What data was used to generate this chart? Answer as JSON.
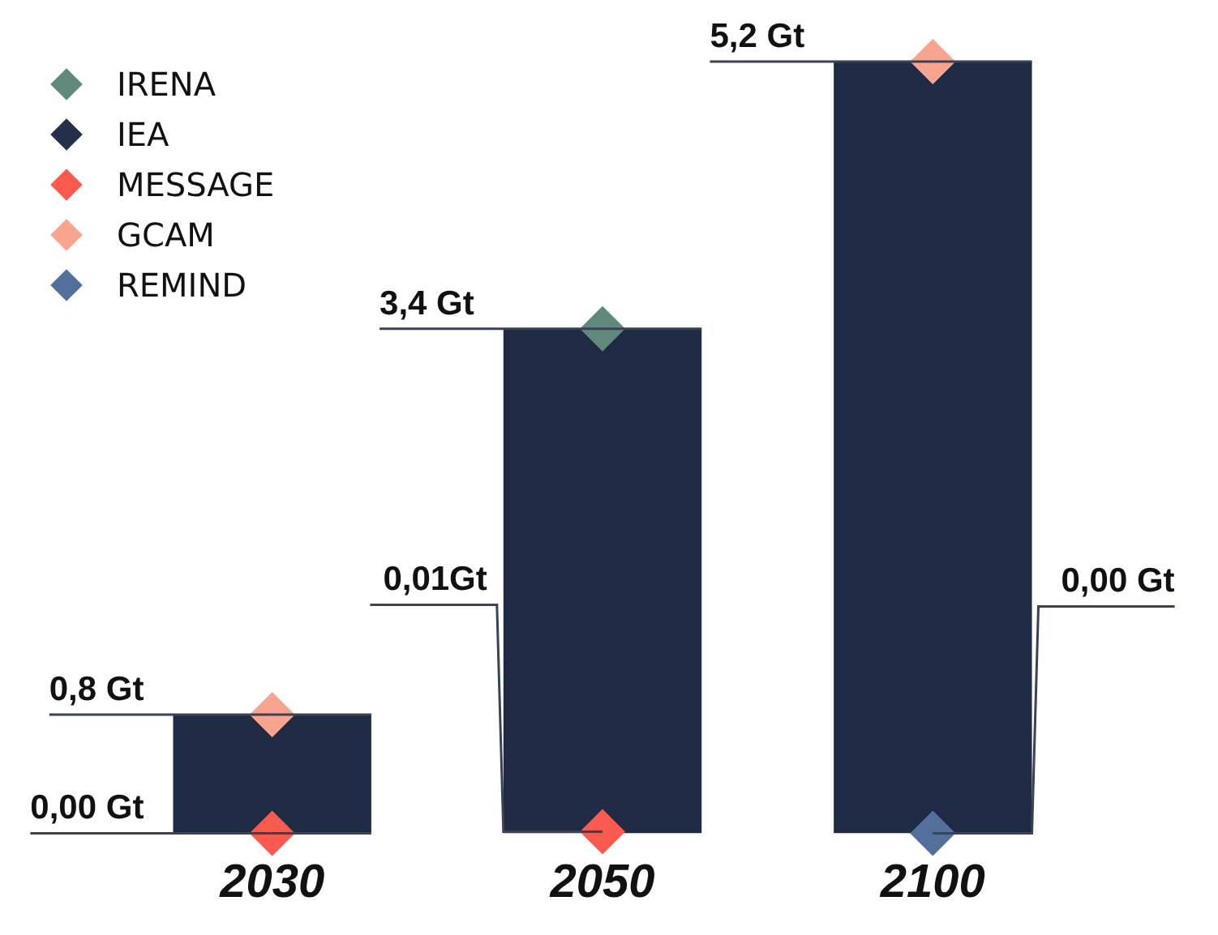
{
  "chart_data": {
    "type": "bar",
    "categories": [
      "2030",
      "2050",
      "2100"
    ],
    "values": [
      0.8,
      3.4,
      5.2
    ],
    "color": "#1f2a44",
    "legend": "top left",
    "marker": "diamond",
    "tick_labels": "x",
    "grid": false,
    "series": [
      {
        "name": "IRENA",
        "type": "scatter",
        "color": "#5f8a7b",
        "values": [
          null,
          3.4,
          null
        ],
        "value_labels": [
          null,
          "3,4 Gt",
          null
        ]
      },
      {
        "name": "IEA",
        "type": "scatter",
        "color": "#243049",
        "values": [
          null,
          null,
          null
        ]
      },
      {
        "name": "MESSAGE",
        "type": "scatter",
        "color": "#fb5a4e",
        "values": [
          0,
          0.01,
          null
        ],
        "value_labels": [
          "0,00 Gt",
          "0,01Gt",
          null
        ]
      },
      {
        "name": "GCAM",
        "type": "scatter",
        "color": "#f9a48f",
        "values": [
          0.8,
          null,
          5.2
        ],
        "value_labels": [
          "0,8 Gt",
          null,
          "5,2 Gt"
        ]
      },
      {
        "name": "REMIND",
        "type": "scatter",
        "color": "#52709b",
        "values": [
          null,
          null,
          0
        ],
        "value_labels": [
          null,
          null,
          "0,00 Gt"
        ]
      }
    ]
  }
}
